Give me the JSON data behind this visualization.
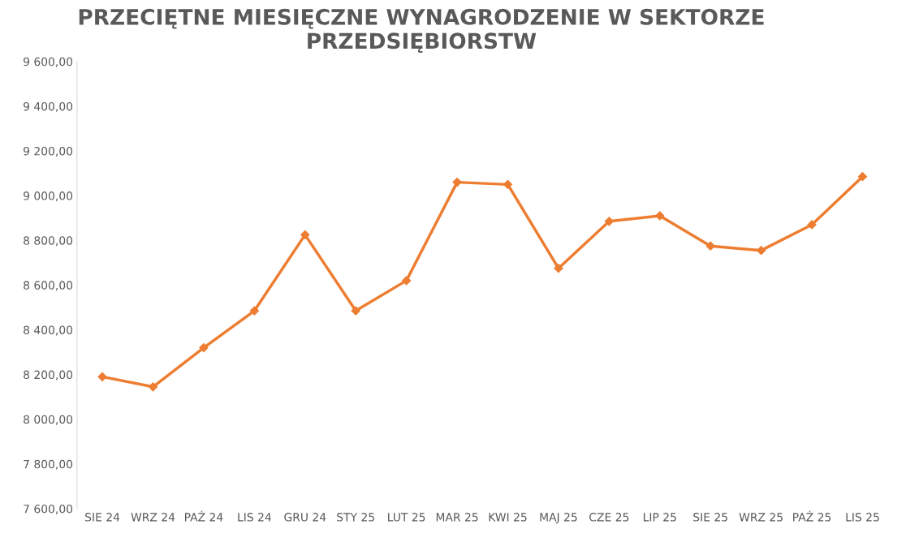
{
  "chart_data": {
    "type": "line",
    "title": "PRZECIĘTNE MIESIĘCZNE WYNAGRODZENIE W SEKTORZE PRZEDSIĘBIORSTW",
    "categories": [
      "SIE 24",
      "WRZ 24",
      "PAŹ 24",
      "LIS 24",
      "GRU 24",
      "STY 25",
      "LUT 25",
      "MAR 25",
      "KWI 25",
      "MAJ 25",
      "CZE 25",
      "LIP 25",
      "SIE 25",
      "WRZ 25",
      "PAŹ 25",
      "LIS 25"
    ],
    "series": [
      {
        "color": "#ed7d31",
        "values": [
          8190,
          8145,
          8320,
          8485,
          8825,
          8485,
          8620,
          9060,
          9050,
          8675,
          8885,
          8910,
          8775,
          8755,
          8870,
          9085
        ]
      }
    ],
    "ylim": [
      7600,
      9600
    ],
    "yticks": [
      {
        "value": 7600,
        "label": "7 600,00"
      },
      {
        "value": 7800,
        "label": "7 800,00"
      },
      {
        "value": 8000,
        "label": "8 000,00"
      },
      {
        "value": 8200,
        "label": "8 200,00"
      },
      {
        "value": 8400,
        "label": "8 400,00"
      },
      {
        "value": 8600,
        "label": "8 600,00"
      },
      {
        "value": 8800,
        "label": "8 800,00"
      },
      {
        "value": 9000,
        "label": "9 000,00"
      },
      {
        "value": 9200,
        "label": "9 200,00"
      },
      {
        "value": 9400,
        "label": "9 400,00"
      },
      {
        "value": 9600,
        "label": "9 600,00"
      }
    ],
    "grid": false,
    "marker": "diamond",
    "line_style": "solid"
  }
}
